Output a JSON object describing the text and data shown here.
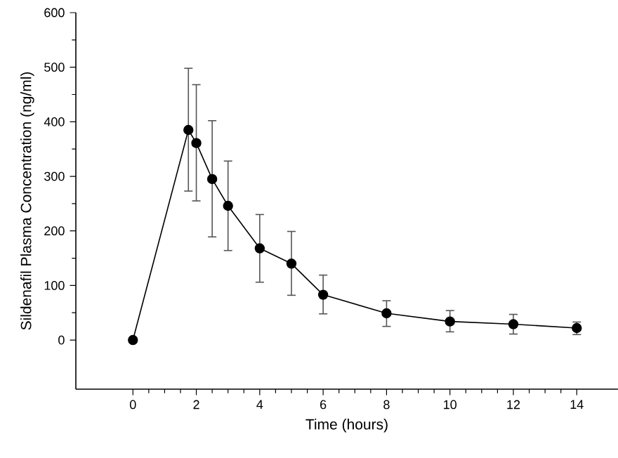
{
  "chart_data": {
    "type": "line",
    "xlabel": "Time (hours)",
    "ylabel": "Sildenafil Plasma Concentration (ng/ml)",
    "x": [
      0,
      1.75,
      2,
      2.5,
      3,
      4,
      5,
      6,
      8,
      10,
      12,
      14
    ],
    "values": [
      0,
      385,
      361,
      295,
      246,
      168,
      140,
      83,
      49,
      34,
      29,
      22
    ],
    "errors": [
      null,
      [
        273,
        498
      ],
      [
        255,
        468
      ],
      [
        189,
        402
      ],
      [
        164,
        328
      ],
      [
        106,
        230
      ],
      [
        82,
        199
      ],
      [
        48,
        119
      ],
      [
        25,
        72
      ],
      [
        15,
        54
      ],
      [
        11,
        47
      ],
      [
        10,
        33
      ]
    ],
    "color": "#000000",
    "marker": "circle",
    "line_style": "solid",
    "xlim": [
      -1.8,
      15.3
    ],
    "ylim": [
      -90,
      600
    ],
    "xticks": [
      0,
      2,
      4,
      6,
      8,
      10,
      12,
      14
    ],
    "yticks": [
      0,
      100,
      200,
      300,
      400,
      500,
      600
    ]
  }
}
